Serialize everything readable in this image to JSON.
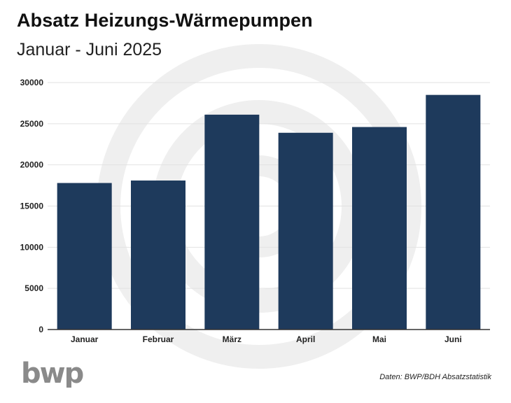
{
  "chart_data": {
    "type": "bar",
    "title": "Absatz Heizungs-Wärmepumpen",
    "subtitle": "Januar - Juni 2025",
    "categories": [
      "Januar",
      "Februar",
      "März",
      "April",
      "Mai",
      "Juni"
    ],
    "values": [
      17800,
      18100,
      26100,
      23900,
      24600,
      28500
    ],
    "yticks": [
      "0",
      "5000",
      "10000",
      "15000",
      "20000",
      "25000",
      "30000"
    ],
    "ylim": [
      0,
      30000
    ],
    "grid": true,
    "bar_color": "#1e3a5c",
    "source": "Daten: BWP/BDH Absatzstatistik"
  },
  "logo": {
    "text": "bwp",
    "color": "#8a8a8a"
  }
}
